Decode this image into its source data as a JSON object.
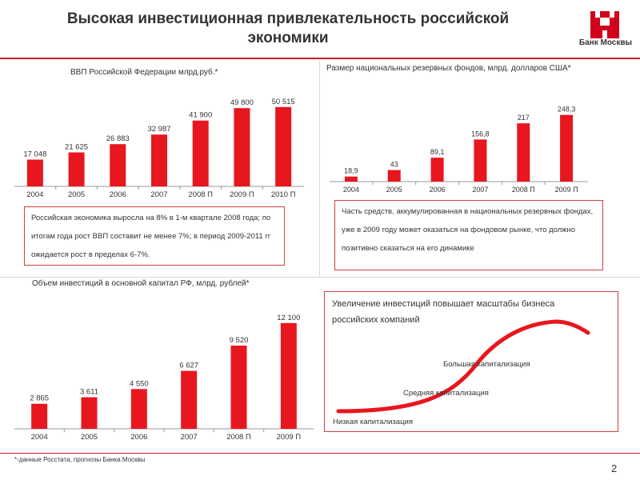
{
  "title": "Высокая инвестиционная привлекательность российской экономики",
  "logo": {
    "text": "Банк Москвы",
    "color": "#d0021b"
  },
  "accent_color": "#e8161e",
  "panels": {
    "gdp": {
      "title": "ВВП Российской Федерации млрд.руб.*",
      "note": "Российская экономика выросла на 8% в 1-м квартале 2008 года; по итогам года рост ВВП составит не менее 7%; в период 2009-2011 гг ожидается рост в пределах 6-7%."
    },
    "reserves": {
      "title": "Размер национальных резервных фондов, млрд. долларов США*",
      "note": "Часть средств, аккумулированная в национальных резервных фондах, уже в 2009 году может оказаться на фондовом рынке, что должно позитивно сказаться на его динамике"
    },
    "investment": {
      "title": "Объем инвестиций в основной капитал РФ, млрд.  рублей*"
    },
    "scurve": {
      "title": "Увеличение инвестиций повышает масштабы бизнеса российских компаний",
      "labels": [
        "Низкая капитализация",
        "Средняя капитализация",
        "Большая капитализация"
      ]
    }
  },
  "chart_data": [
    {
      "type": "bar",
      "title": "ВВП Российской Федерации млрд.руб.*",
      "categories": [
        "2004",
        "2005",
        "2006",
        "2007",
        "2008 П",
        "2009 П",
        "2010 П"
      ],
      "values": [
        17048,
        21625,
        26883,
        32987,
        41900,
        49800,
        50515
      ],
      "value_labels": [
        "17 048",
        "21 625",
        "26 883",
        "32 987",
        "41 900",
        "49 800",
        "50 515"
      ],
      "ylim": [
        0,
        56000
      ],
      "color": "#e8161e"
    },
    {
      "type": "bar",
      "title": "Размер национальных резервных фондов, млрд. долларов США*",
      "categories": [
        "2004",
        "2005",
        "2006",
        "2007",
        "2008 П",
        "2009 П"
      ],
      "values": [
        18.9,
        43,
        89.1,
        156.8,
        217,
        248.3
      ],
      "value_labels": [
        "18,9",
        "43",
        "89,1",
        "156,8",
        "217",
        "248,3"
      ],
      "ylim": [
        0,
        280
      ],
      "color": "#e8161e"
    },
    {
      "type": "bar",
      "title": "Объем инвестиций в основной капитал РФ, млрд.  рублей*",
      "categories": [
        "2004",
        "2005",
        "2006",
        "2007",
        "2008 П",
        "2009 П"
      ],
      "values": [
        2865,
        3611,
        4550,
        6627,
        9520,
        12100
      ],
      "value_labels": [
        "2 865",
        "3 611",
        "4 550",
        "6 627",
        "9 520",
        "12 100"
      ],
      "ylim": [
        0,
        13000
      ],
      "color": "#e8161e"
    }
  ],
  "footnote": "*-данные Росстата, прогнозы Банка Москвы",
  "page_number": "2"
}
